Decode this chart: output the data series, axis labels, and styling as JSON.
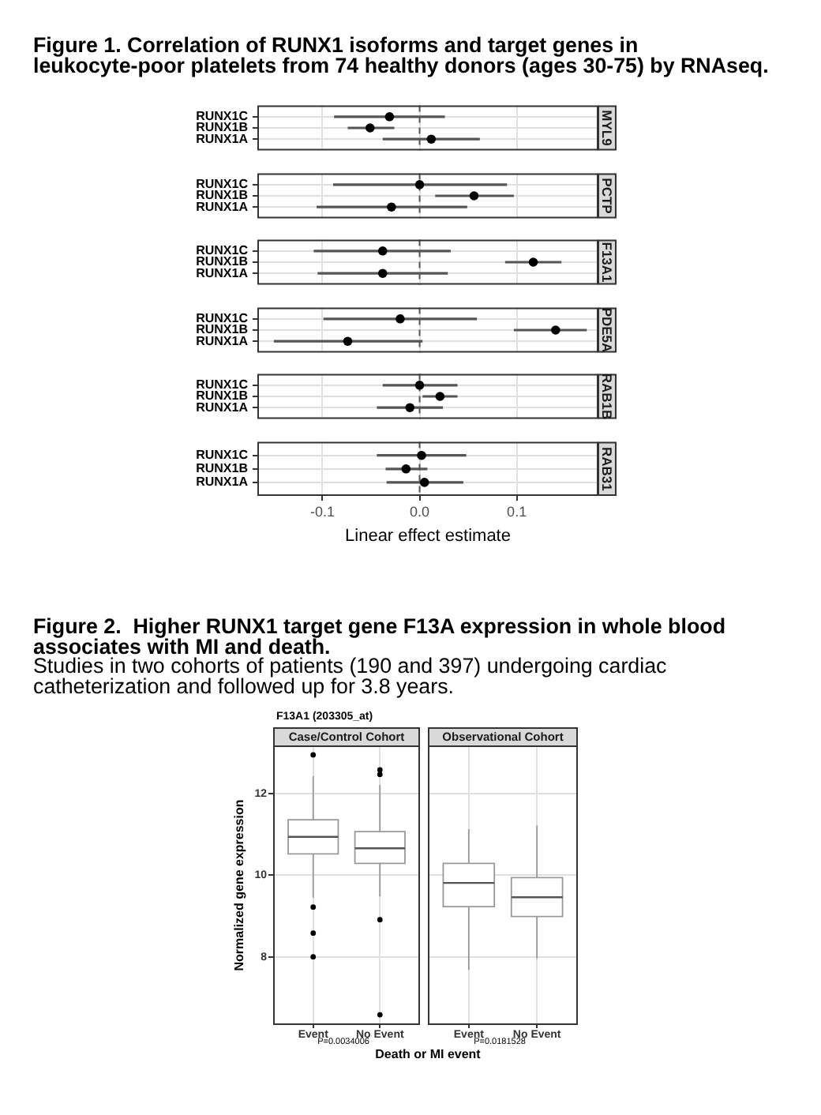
{
  "chart_data": [
    {
      "type": "scatter",
      "orientation": "horizontal",
      "title": "MYL9",
      "annotations": [
        "Figure 1. Correlation of RUNX1 isoforms and target genes in leukocyte-poor platelets from 74 healthy donors (ages 30-75) by RNAseq."
      ],
      "categories": [
        "RUNX1C",
        "RUNX1B",
        "RUNX1A"
      ],
      "values": [
        -0.031,
        -0.051,
        0.012
      ],
      "errors": [
        [
          -0.088,
          0.026
        ],
        [
          -0.074,
          -0.026
        ],
        [
          -0.038,
          0.062
        ]
      ],
      "color": "#000000",
      "marker": "circle",
      "xlim": [
        -0.167,
        0.184
      ],
      "xticks": [
        {
          "value": -0.1,
          "label": null
        },
        {
          "value": 0,
          "label": null
        },
        {
          "value": 0.1,
          "label": null
        }
      ],
      "ref_lines": [
        {
          "axis": "x",
          "value": 0,
          "line_style": "dashed",
          "color": "#555555"
        }
      ],
      "grid": true,
      "tick_labels": "y"
    },
    {
      "type": "scatter",
      "orientation": "horizontal",
      "title": "PCTP",
      "categories": [
        "RUNX1C",
        "RUNX1B",
        "RUNX1A"
      ],
      "values": [
        0.0,
        0.056,
        -0.029
      ],
      "errors": [
        [
          -0.089,
          0.09
        ],
        [
          0.016,
          0.097
        ],
        [
          -0.106,
          0.049
        ]
      ],
      "color": "#000000",
      "marker": "circle",
      "xlim": [
        -0.167,
        0.184
      ],
      "xticks": [
        {
          "value": -0.1,
          "label": null
        },
        {
          "value": 0,
          "label": null
        },
        {
          "value": 0.1,
          "label": null
        }
      ],
      "ref_lines": [
        {
          "axis": "x",
          "value": 0,
          "line_style": "dashed",
          "color": "#555555"
        }
      ],
      "grid": true,
      "tick_labels": "y"
    },
    {
      "type": "scatter",
      "orientation": "horizontal",
      "title": "F13A1",
      "categories": [
        "RUNX1C",
        "RUNX1B",
        "RUNX1A"
      ],
      "values": [
        -0.038,
        0.117,
        -0.038
      ],
      "errors": [
        [
          -0.109,
          0.032
        ],
        [
          0.088,
          0.146
        ],
        [
          -0.105,
          0.029
        ]
      ],
      "color": "#000000",
      "marker": "circle",
      "xlim": [
        -0.167,
        0.184
      ],
      "xticks": [
        {
          "value": -0.1,
          "label": null
        },
        {
          "value": 0,
          "label": null
        },
        {
          "value": 0.1,
          "label": null
        }
      ],
      "ref_lines": [
        {
          "axis": "x",
          "value": 0,
          "line_style": "dashed",
          "color": "#555555"
        }
      ],
      "grid": true,
      "tick_labels": "y"
    },
    {
      "type": "scatter",
      "orientation": "horizontal",
      "title": "PDE5A",
      "categories": [
        "RUNX1C",
        "RUNX1B",
        "RUNX1A"
      ],
      "values": [
        -0.02,
        0.14,
        -0.074
      ],
      "errors": [
        [
          -0.099,
          0.059
        ],
        [
          0.097,
          0.172
        ],
        [
          -0.15,
          0.003
        ]
      ],
      "color": "#000000",
      "marker": "circle",
      "xlim": [
        -0.167,
        0.184
      ],
      "xticks": [
        {
          "value": -0.1,
          "label": null
        },
        {
          "value": 0,
          "label": null
        },
        {
          "value": 0.1,
          "label": null
        }
      ],
      "ref_lines": [
        {
          "axis": "x",
          "value": 0,
          "line_style": "dashed",
          "color": "#555555"
        }
      ],
      "grid": true,
      "tick_labels": "y"
    },
    {
      "type": "scatter",
      "orientation": "horizontal",
      "title": "RAB1B",
      "categories": [
        "RUNX1C",
        "RUNX1B",
        "RUNX1A"
      ],
      "values": [
        0.0,
        0.021,
        -0.01
      ],
      "errors": [
        [
          -0.038,
          0.039
        ],
        [
          0.003,
          0.039
        ],
        [
          -0.044,
          0.024
        ]
      ],
      "color": "#000000",
      "marker": "circle",
      "xlim": [
        -0.167,
        0.184
      ],
      "xticks": [
        {
          "value": -0.1,
          "label": null
        },
        {
          "value": 0,
          "label": null
        },
        {
          "value": 0.1,
          "label": null
        }
      ],
      "ref_lines": [
        {
          "axis": "x",
          "value": 0,
          "line_style": "dashed",
          "color": "#555555"
        }
      ],
      "grid": true,
      "tick_labels": "y"
    },
    {
      "type": "scatter",
      "orientation": "horizontal",
      "title": "RAB31",
      "xlabel": "Linear effect estimate",
      "categories": [
        "RUNX1C",
        "RUNX1B",
        "RUNX1A"
      ],
      "values": [
        0.002,
        -0.014,
        0.005
      ],
      "errors": [
        [
          -0.044,
          0.048
        ],
        [
          -0.035,
          0.008
        ],
        [
          -0.034,
          0.045
        ]
      ],
      "color": "#000000",
      "marker": "circle",
      "xlim": [
        -0.167,
        0.184
      ],
      "xticks": [
        -0.1,
        {
          "value": 0,
          "label": "0.0"
        },
        0.1
      ],
      "ref_lines": [
        {
          "axis": "x",
          "value": 0,
          "line_style": "dashed",
          "color": "#555555"
        }
      ],
      "grid": true
    },
    {
      "type": "box",
      "title": "Case/Control Cohort",
      "annotations": [
        "Figure 2.  Higher RUNX1 target gene F13A expression in whole blood associates with MI and death.",
        "Studies in two cohorts of patients (190 and 397) undergoing cardiac catheterization and followed up for 3.8 years.",
        "F13A1 (203305_at)",
        "P=0.0034006"
      ],
      "xlabel": "Death or MI event",
      "ylabel": "Normalized gene expression",
      "categories": [
        "Event",
        "No Event"
      ],
      "boxes": [
        {
          "low": 9.45,
          "q1": 10.52,
          "median": 10.94,
          "q3": 11.36,
          "high": 12.43,
          "outliers": [
            12.95,
            9.22,
            8.58,
            8.0
          ]
        },
        {
          "low": 9.48,
          "q1": 10.29,
          "median": 10.66,
          "q3": 11.07,
          "high": 12.21,
          "outliers": [
            12.58,
            12.47,
            8.91,
            6.58
          ]
        }
      ],
      "ylim": [
        6.33,
        13.18
      ],
      "yticks": [
        8,
        10,
        12
      ],
      "grid": true
    },
    {
      "type": "box",
      "title": "Observational Cohort",
      "annotations": [
        "P=0.0181528"
      ],
      "categories": [
        "Event",
        "No Event"
      ],
      "boxes": [
        {
          "low": 7.68,
          "q1": 9.23,
          "median": 9.81,
          "q3": 10.29,
          "high": 11.13
        },
        {
          "low": 7.96,
          "q1": 8.99,
          "median": 9.46,
          "q3": 9.94,
          "high": 11.22
        }
      ],
      "ylim": [
        6.33,
        13.18
      ],
      "yticks": [
        8,
        10,
        12
      ],
      "grid": true,
      "tick_labels": "x"
    }
  ]
}
